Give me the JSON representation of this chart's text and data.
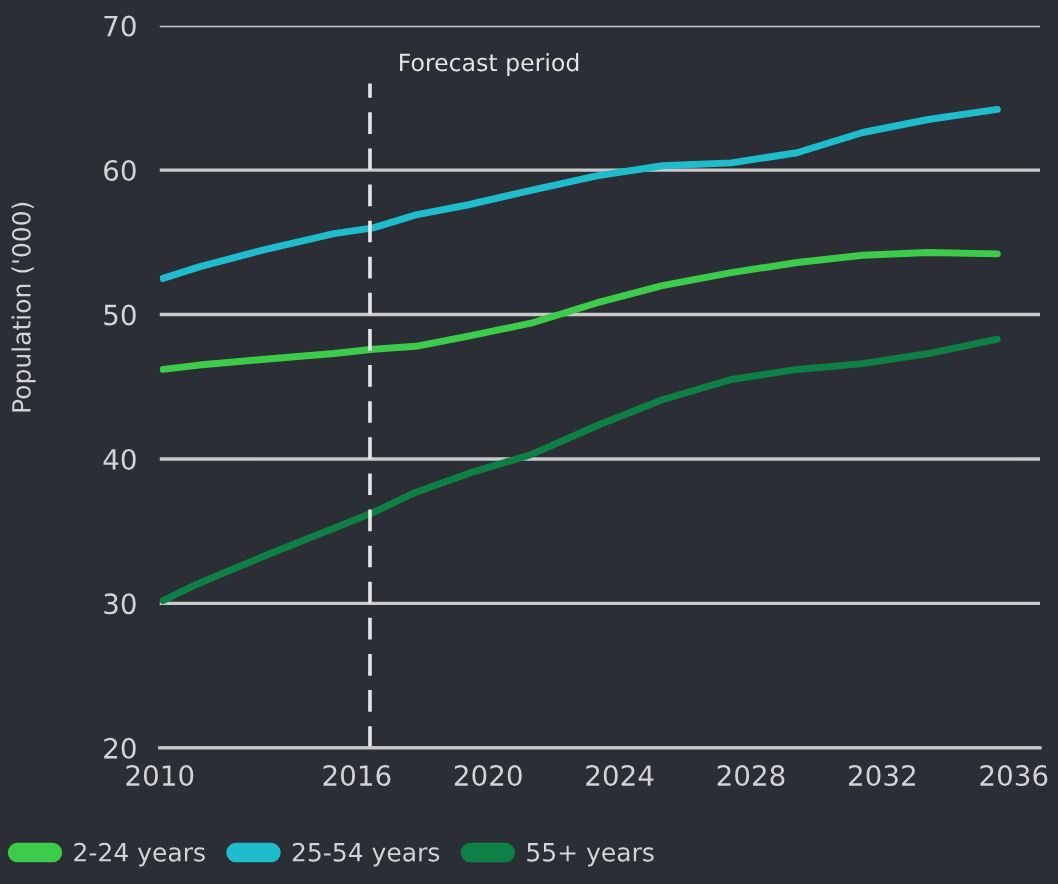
{
  "chart_data": {
    "type": "line",
    "ylabel": "Population ('000)",
    "x": [
      2010.1,
      2011.2,
      2013.2,
      2015.3,
      2016.5,
      2017.8,
      2019.4,
      2021.3,
      2023.3,
      2025.3,
      2027.4,
      2029.4,
      2031.4,
      2033.4,
      2035.5
    ],
    "series": [
      {
        "name": "2-24 years",
        "color": "#3ccb4a",
        "values": [
          46.2,
          46.5,
          46.9,
          47.3,
          47.6,
          47.8,
          48.5,
          49.4,
          50.8,
          52.0,
          52.9,
          53.6,
          54.1,
          54.3,
          54.2
        ]
      },
      {
        "name": "25-54 years",
        "color": "#1fbccb",
        "values": [
          52.5,
          53.3,
          54.5,
          55.6,
          56.0,
          56.9,
          57.6,
          58.6,
          59.6,
          60.3,
          60.5,
          61.2,
          62.6,
          63.5,
          64.2
        ]
      },
      {
        "name": "55+ years",
        "color": "#0e7f45",
        "values": [
          30.2,
          31.4,
          33.3,
          35.2,
          36.3,
          37.7,
          39.0,
          40.3,
          42.3,
          44.1,
          45.5,
          46.2,
          46.6,
          47.3,
          48.3
        ]
      }
    ],
    "xlim": [
      2010,
      2036.8
    ],
    "xticks": [
      2010,
      2016,
      2020,
      2024,
      2028,
      2032,
      2036
    ],
    "ylim": [
      20,
      70
    ],
    "yticks": [
      20,
      30,
      40,
      50,
      60,
      70
    ],
    "ref_lines": [
      {
        "axis": "x",
        "value": 2016.4,
        "label": "Forecast period",
        "color": "#e6e6e6",
        "line_style": "dashed"
      }
    ],
    "grid": "y",
    "legend": "bottom",
    "marker": "none",
    "line_style": "solid"
  }
}
